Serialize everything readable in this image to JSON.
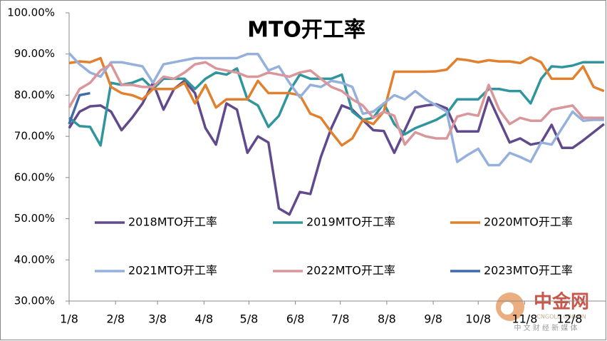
{
  "chart_data": {
    "type": "line",
    "title": "MTO开工率",
    "x": [
      8,
      15,
      22,
      29,
      36,
      43,
      50,
      57,
      64,
      71,
      78,
      85,
      92,
      99,
      106,
      113,
      120,
      127,
      134,
      141,
      148,
      155,
      162,
      169,
      176,
      183,
      190,
      197,
      204,
      211,
      218,
      225,
      232,
      239,
      246,
      253,
      260,
      267,
      274,
      281,
      288,
      295,
      302,
      309,
      316,
      323,
      330,
      337,
      344,
      351,
      358,
      365
    ],
    "xlim": [
      8,
      366
    ],
    "xticks": [
      {
        "value": 8,
        "label": "1/8"
      },
      {
        "value": 39,
        "label": "2/8"
      },
      {
        "value": 67,
        "label": "3/8"
      },
      {
        "value": 98,
        "label": "4/8"
      },
      {
        "value": 128,
        "label": "5/8"
      },
      {
        "value": 159,
        "label": "6/8"
      },
      {
        "value": 189,
        "label": "7/8"
      },
      {
        "value": 220,
        "label": "8/8"
      },
      {
        "value": 251,
        "label": "9/8"
      },
      {
        "value": 281,
        "label": "10/8"
      },
      {
        "value": 312,
        "label": "11/8"
      },
      {
        "value": 342,
        "label": "12/8"
      }
    ],
    "ylim": [
      30,
      100
    ],
    "yticks": [
      {
        "value": 30,
        "label": "30.00%"
      },
      {
        "value": 40,
        "label": "40.00%"
      },
      {
        "value": 50,
        "label": "50.00%"
      },
      {
        "value": 60,
        "label": "60.00%"
      },
      {
        "value": 70,
        "label": "70.00%"
      },
      {
        "value": 80,
        "label": "80.00%"
      },
      {
        "value": 90,
        "label": "90.00%"
      },
      {
        "value": 100,
        "label": "100.00%"
      }
    ],
    "grid": false,
    "series": [
      {
        "name": "2018MTO开工率",
        "color": "#604a8c",
        "values": [
          72,
          76,
          77.3,
          77.5,
          76,
          71.5,
          74.5,
          78,
          83,
          76.5,
          81.5,
          83.5,
          80.5,
          72,
          68,
          78,
          76.5,
          66,
          70,
          68.5,
          52.5,
          51,
          56.5,
          56,
          65,
          72,
          77.5,
          76.5,
          74,
          71.5,
          71.3,
          66,
          71.5,
          77,
          77.5,
          77.8,
          76.8,
          71.2,
          71.2,
          71.2,
          79.5,
          74,
          68.5,
          69.5,
          68,
          68.5,
          72.8,
          67.2,
          67.2,
          69,
          71,
          73
        ]
      },
      {
        "name": "2019MTO开工率",
        "color": "#31959e",
        "values": [
          74.5,
          72.5,
          72.3,
          67.8,
          83,
          82.5,
          83,
          84,
          81.5,
          84,
          84,
          84,
          81.5,
          84,
          85.5,
          85,
          86.5,
          79,
          77.5,
          72.3,
          75,
          81,
          85,
          84,
          84,
          84,
          85,
          76,
          74,
          74.5,
          78,
          73,
          70.5,
          72,
          73,
          74,
          75.5,
          79,
          79,
          79,
          81.5,
          81.5,
          81,
          81,
          78,
          84,
          87,
          86.8,
          87.2,
          88,
          88,
          88
        ]
      },
      {
        "name": "2020MTO开工率",
        "color": "#e1812f",
        "values": [
          87.8,
          88.2,
          88,
          89,
          82,
          80.5,
          80,
          79,
          81.5,
          81.5,
          81.5,
          83,
          78,
          82.5,
          77,
          79,
          79,
          79,
          83.5,
          80.5,
          80.5,
          80.5,
          80,
          75.5,
          74.5,
          71,
          67.8,
          69.5,
          74,
          73,
          76,
          85.7,
          85.7,
          85.7,
          85.7,
          85.8,
          86.2,
          88.8,
          88.5,
          88,
          88.5,
          88.2,
          88.2,
          87.8,
          89.2,
          88,
          84,
          84,
          84,
          87,
          82,
          81
        ]
      },
      {
        "name": "2021MTO开工率",
        "color": "#96b0dc",
        "values": [
          90.2,
          87.5,
          85.5,
          84.5,
          88,
          88,
          87.5,
          87,
          83,
          87.5,
          88,
          88.5,
          89,
          89,
          89,
          89,
          89,
          90,
          90,
          86,
          87,
          83,
          79.5,
          82.5,
          82,
          83.5,
          83,
          82,
          75.5,
          76,
          78,
          80,
          79,
          81,
          79,
          77.5,
          76,
          63.8,
          65.5,
          67,
          63,
          63,
          66,
          65,
          63.8,
          68.5,
          68,
          72,
          76,
          73.8,
          74,
          74
        ]
      },
      {
        "name": "2022MTO开工率",
        "color": "#d9969b",
        "values": [
          77,
          81.5,
          83,
          86,
          87.5,
          82.5,
          82.5,
          82,
          82,
          84.5,
          84,
          85.5,
          87.5,
          88,
          86.5,
          86,
          85.5,
          84.5,
          84.5,
          85.5,
          85,
          84.5,
          85.5,
          86,
          84,
          82,
          81,
          79,
          77.5,
          74.5,
          76,
          75,
          68,
          71,
          70,
          69.5,
          69.5,
          74.8,
          75.5,
          75,
          82.5,
          76.5,
          73,
          74.5,
          73.8,
          73.8,
          76.5,
          77,
          77.5,
          74.5,
          74.5,
          74.5
        ]
      },
      {
        "name": "2023MTO开工率",
        "color": "#3f6ca9",
        "values": [
          73,
          80,
          80.5,
          null,
          null,
          null,
          null,
          null,
          null,
          null,
          null,
          null,
          null,
          null,
          null,
          null,
          null,
          null,
          null,
          null,
          null,
          null,
          null,
          null,
          null,
          null,
          null,
          null,
          null,
          null,
          null,
          null,
          null,
          null,
          null,
          null,
          null,
          null,
          null,
          null,
          null,
          null,
          null,
          null,
          null,
          null,
          null,
          null,
          null,
          null,
          null,
          null
        ]
      }
    ]
  },
  "watermark": {
    "name": "中金网",
    "url": "CNGOLD.ORG.CN",
    "tagline": "中 文 财 经 新 媒 体"
  }
}
